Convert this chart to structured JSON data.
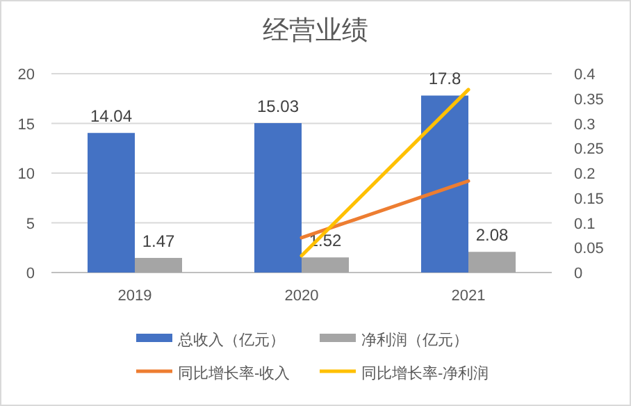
{
  "chart_data": {
    "type": "bar",
    "title": "经营业绩",
    "categories": [
      "2019",
      "2020",
      "2021"
    ],
    "series": [
      {
        "name": "总收入（亿元）",
        "color": "#4472c4",
        "values": [
          14.04,
          15.03,
          17.8
        ],
        "value_labels": [
          "14.04",
          "15.03",
          "17.8"
        ]
      },
      {
        "name": "净利润（亿元）",
        "color": "#a5a5a5",
        "values": [
          1.47,
          1.52,
          2.08
        ],
        "value_labels": [
          "1.47",
          "1.52",
          "2.08"
        ]
      },
      {
        "name": "同比增长率-收入",
        "type": "line",
        "axis": "y2",
        "color": "#ed7d31",
        "values": [
          null,
          0.07,
          0.184
        ]
      },
      {
        "name": "同比增长率-净利润",
        "type": "line",
        "axis": "y2",
        "color": "#ffc000",
        "values": [
          null,
          0.034,
          0.368
        ]
      }
    ],
    "ylim": [
      0,
      20
    ],
    "yticks": [
      0,
      5,
      10,
      15,
      20
    ],
    "y2lim": [
      0,
      0.4
    ],
    "y2ticks": [
      0,
      0.05,
      0.1,
      0.15,
      0.2,
      0.25,
      0.3,
      0.35,
      0.4
    ],
    "grid": "y",
    "legend": "bottom",
    "marker": "none"
  }
}
